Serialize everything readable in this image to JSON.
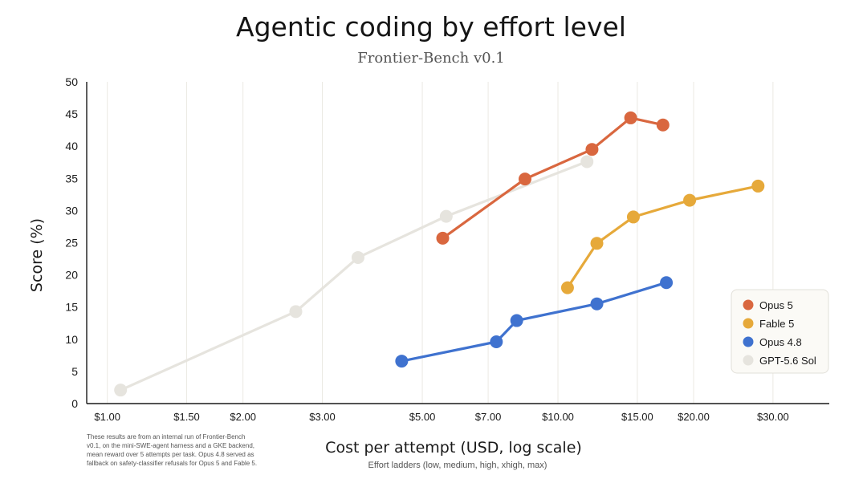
{
  "chart_data": {
    "type": "line",
    "title": "Agentic coding by effort level",
    "subtitle": "Frontier-Bench v0.1",
    "xlabel": "Cost per attempt (USD, log scale)",
    "xsublabel": "Effort ladders (low, medium, high, xhigh, max)",
    "ylabel": "Score (%)",
    "xscale": "log",
    "xlim": [
      0.9,
      40
    ],
    "ylim": [
      0,
      50
    ],
    "grid": "vertical",
    "legend_position": "right",
    "x_ticks": [
      {
        "value": 1,
        "label": "$1.00"
      },
      {
        "value": 1.5,
        "label": "$1.50"
      },
      {
        "value": 2,
        "label": "$2.00"
      },
      {
        "value": 3,
        "label": "$3.00"
      },
      {
        "value": 5,
        "label": "$5.00"
      },
      {
        "value": 7,
        "label": "$7.00"
      },
      {
        "value": 10,
        "label": "$10.00"
      },
      {
        "value": 15,
        "label": "$15.00"
      },
      {
        "value": 20,
        "label": "$20.00"
      },
      {
        "value": 30,
        "label": "$30.00"
      }
    ],
    "y_ticks": [
      0,
      5,
      10,
      15,
      20,
      25,
      30,
      35,
      40,
      45,
      50
    ],
    "series": [
      {
        "name": "GPT-5.6 Sol",
        "color": "#e6e4de",
        "points": [
          {
            "x": 1.07,
            "y": 2.1
          },
          {
            "x": 2.62,
            "y": 14.3
          },
          {
            "x": 3.6,
            "y": 22.7
          },
          {
            "x": 5.65,
            "y": 29.1
          },
          {
            "x": 11.6,
            "y": 37.6
          }
        ]
      },
      {
        "name": "Opus 4.8",
        "color": "#3f72cf",
        "points": [
          {
            "x": 4.5,
            "y": 6.6
          },
          {
            "x": 7.3,
            "y": 9.6
          },
          {
            "x": 8.1,
            "y": 12.9
          },
          {
            "x": 12.2,
            "y": 15.5
          },
          {
            "x": 17.4,
            "y": 18.8
          }
        ]
      },
      {
        "name": "Fable 5",
        "color": "#e6a93a",
        "points": [
          {
            "x": 10.5,
            "y": 18.0
          },
          {
            "x": 12.2,
            "y": 24.9
          },
          {
            "x": 14.7,
            "y": 29.0
          },
          {
            "x": 19.6,
            "y": 31.6
          },
          {
            "x": 27.8,
            "y": 33.8
          }
        ]
      },
      {
        "name": "Opus 5",
        "color": "#d9673f",
        "points": [
          {
            "x": 5.55,
            "y": 25.7
          },
          {
            "x": 8.45,
            "y": 34.9
          },
          {
            "x": 11.9,
            "y": 39.5
          },
          {
            "x": 14.5,
            "y": 44.4
          },
          {
            "x": 17.1,
            "y": 43.3
          }
        ]
      }
    ],
    "legend_order": [
      "Opus 5",
      "Fable 5",
      "Opus 4.8",
      "GPT-5.6 Sol"
    ],
    "footnote": [
      "These results are from an internal run of Frontier-Bench",
      "v0.1, on the mini-SWE-agent harness and a GKE backend,",
      "mean reward over 5 attempts per task. Opus 4.8 served as",
      "fallback on safety-classifier refusals for Opus 5 and Fable 5."
    ]
  }
}
